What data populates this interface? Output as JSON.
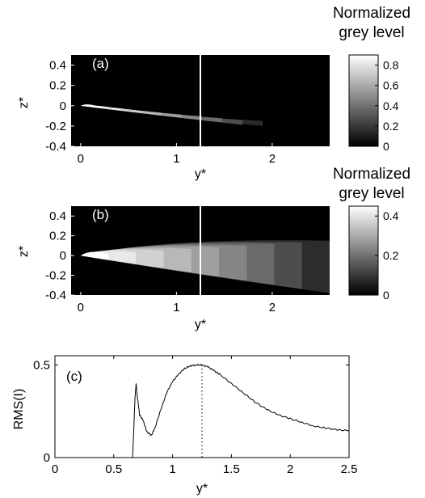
{
  "panels": {
    "a": {
      "label": "(a)",
      "ylabel": "z*",
      "xlabel": "y*",
      "xticks": [
        "0",
        "1",
        "2"
      ],
      "yticks": [
        "0.4",
        "0.2",
        "0",
        "-0.2",
        "-0.4"
      ],
      "colorbar_title_line1": "Normalized",
      "colorbar_title_line2": "grey level",
      "colorbar_ticks": [
        "0.8",
        "0.6",
        "0.4",
        "0.2",
        "0"
      ]
    },
    "b": {
      "label": "(b)",
      "ylabel": "z*",
      "xlabel": "y*",
      "xticks": [
        "0",
        "1",
        "2"
      ],
      "yticks": [
        "0.4",
        "0.2",
        "0",
        "-0.2",
        "-0.4"
      ],
      "colorbar_title_line1": "Normalized",
      "colorbar_title_line2": "grey level",
      "colorbar_ticks": [
        "0.4",
        "0.2",
        "0"
      ]
    },
    "c": {
      "label": "(c)",
      "ylabel": "RMS(I)",
      "xlabel": "y*",
      "xticks": [
        "0",
        "0.5",
        "1",
        "1.5",
        "2",
        "2.5"
      ],
      "yticks": [
        "0.5",
        "0"
      ]
    }
  },
  "chart_data": [
    {
      "type": "heatmap",
      "panel": "a",
      "xlabel": "y*",
      "ylabel": "z*",
      "xlim": [
        -0.1,
        2.6
      ],
      "ylim": [
        -0.4,
        0.5
      ],
      "colorbar": {
        "title": "Normalized grey level",
        "range": [
          0,
          0.9
        ],
        "ticks": [
          0,
          0.2,
          0.4,
          0.6,
          0.8
        ]
      },
      "spray_shape": {
        "origin": [
          0,
          0
        ],
        "upper_edge_end": [
          1.8,
          -0.15
        ],
        "lower_edge_end": [
          1.8,
          -0.2
        ],
        "max_level": 0.9,
        "tail_end_y": 1.9
      },
      "marker_line_y": 1.25
    },
    {
      "type": "heatmap",
      "panel": "b",
      "xlabel": "y*",
      "ylabel": "z*",
      "xlim": [
        -0.1,
        2.6
      ],
      "ylim": [
        -0.4,
        0.5
      ],
      "colorbar": {
        "title": "Normalized grey level",
        "range": [
          0,
          0.45
        ],
        "ticks": [
          0,
          0.2,
          0.4
        ]
      },
      "spray_shape": {
        "origin": [
          0,
          0
        ],
        "upper_edge_end": [
          2.6,
          0.15
        ],
        "lower_edge_end": [
          2.6,
          -0.38
        ],
        "max_level": 0.45,
        "tail_end_y": 2.6
      },
      "marker_line_y": 1.25
    },
    {
      "type": "line",
      "panel": "c",
      "xlabel": "y*",
      "ylabel": "RMS(I)",
      "xlim": [
        0,
        2.5
      ],
      "ylim": [
        0,
        0.55
      ],
      "x": [
        0.66,
        0.67,
        0.68,
        0.69,
        0.7,
        0.72,
        0.75,
        0.78,
        0.82,
        0.85,
        0.9,
        0.95,
        1.0,
        1.05,
        1.1,
        1.15,
        1.2,
        1.25,
        1.3,
        1.35,
        1.4,
        1.5,
        1.6,
        1.7,
        1.8,
        1.9,
        2.0,
        2.1,
        2.2,
        2.3,
        2.4,
        2.5
      ],
      "values": [
        0.0,
        0.15,
        0.32,
        0.4,
        0.33,
        0.23,
        0.2,
        0.14,
        0.12,
        0.16,
        0.26,
        0.35,
        0.41,
        0.45,
        0.48,
        0.495,
        0.5,
        0.5,
        0.49,
        0.47,
        0.45,
        0.4,
        0.35,
        0.3,
        0.26,
        0.23,
        0.21,
        0.19,
        0.17,
        0.16,
        0.15,
        0.145
      ],
      "marker_line_x": 1.25
    }
  ]
}
